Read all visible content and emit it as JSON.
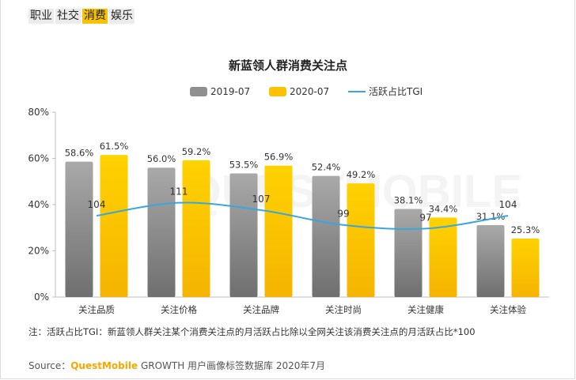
{
  "tabs": [
    {
      "label": "职业",
      "active": false
    },
    {
      "label": "社交",
      "active": false
    },
    {
      "label": "消费",
      "active": true
    },
    {
      "label": "娱乐",
      "active": false
    }
  ],
  "note": "注：活跃占比TGI：新蓝领人群关注某个消费关注点的月活跃占比除以全网关注该消费关注点的月活跃占比*100",
  "source": {
    "prefix": "Source：",
    "brand": "QuestMobile",
    "suffix": " GROWTH 用户画像标签数据库 2020年7月"
  },
  "watermark": "QUESTMOBILE",
  "colors": {
    "series_2019": "#8f8f8f",
    "series_2020": "#fcc200",
    "tgi_line": "#3ba6dc",
    "active_tab": "#f7c200"
  },
  "chart_data": {
    "type": "bar",
    "title": "新蓝领人群消费关注点",
    "categories": [
      "关注品质",
      "关注价格",
      "关注品牌",
      "关注时尚",
      "关注健康",
      "关注体验"
    ],
    "series": [
      {
        "name": "2019-07",
        "type": "bar",
        "values": [
          58.6,
          56.0,
          53.5,
          52.4,
          38.1,
          31.1
        ],
        "labels": [
          "58.6%",
          "56.0%",
          "53.5%",
          "52.4%",
          "38.1%",
          "31.1%"
        ]
      },
      {
        "name": "2020-07",
        "type": "bar",
        "values": [
          61.5,
          59.2,
          56.9,
          49.2,
          34.4,
          25.3
        ],
        "labels": [
          "61.5%",
          "59.2%",
          "56.9%",
          "49.2%",
          "34.4%",
          "25.3%"
        ]
      },
      {
        "name": "活跃占比TGI",
        "type": "line",
        "values": [
          104,
          111,
          107,
          99,
          97,
          104
        ],
        "labels": [
          "104",
          "111",
          "107",
          "99",
          "97",
          "104"
        ]
      }
    ],
    "yaxis": {
      "ylim": [
        0,
        80
      ],
      "ticks": [
        0,
        20,
        40,
        60,
        80
      ],
      "tick_labels": [
        "0%",
        "20%",
        "40%",
        "60%",
        "80%"
      ]
    },
    "tgi_range": [
      60,
      160
    ],
    "legend": "top",
    "grid": false
  }
}
